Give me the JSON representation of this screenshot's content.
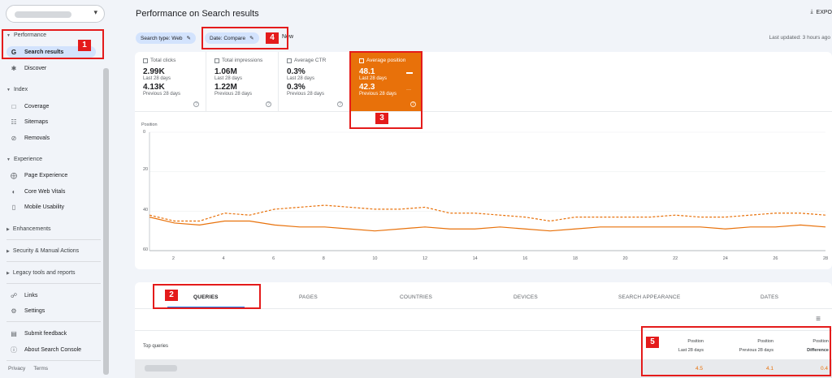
{
  "sidebar": {
    "performance_section": "Performance",
    "search_results": "Search results",
    "discover": "Discover",
    "index_section": "Index",
    "coverage": "Coverage",
    "sitemaps": "Sitemaps",
    "removals": "Removals",
    "experience_section": "Experience",
    "page_experience": "Page Experience",
    "core_web_vitals": "Core Web Vitals",
    "mobile_usability": "Mobile Usability",
    "enhancements": "Enhancements",
    "security": "Security & Manual Actions",
    "legacy": "Legacy tools and reports",
    "links": "Links",
    "settings": "Settings",
    "submit_feedback": "Submit feedback",
    "about": "About Search Console",
    "privacy": "Privacy",
    "terms": "Terms"
  },
  "header": {
    "title": "Performance on Search results",
    "export": "EXPO",
    "chip_search_type": "Search type: Web",
    "chip_date": "Date: Compare",
    "new": "New",
    "last_updated": "Last updated: 3 hours ago"
  },
  "metrics": [
    {
      "title": "Total clicks",
      "value": "2.99K",
      "sub": "Last 28 days",
      "value2": "4.13K",
      "sub2": "Previous 28 days"
    },
    {
      "title": "Total impressions",
      "value": "1.06M",
      "sub": "Last 28 days",
      "value2": "1.22M",
      "sub2": "Previous 28 days"
    },
    {
      "title": "Average CTR",
      "value": "0.3%",
      "sub": "Last 28 days",
      "value2": "0.3%",
      "sub2": "Previous 28 days"
    },
    {
      "title": "Average position",
      "value": "48.1",
      "sub": "Last 28 days",
      "value2": "42.3",
      "sub2": "Previous 28 days"
    }
  ],
  "chart_data": {
    "type": "line",
    "ylabel": "Position",
    "ylim": [
      0,
      60
    ],
    "y_reversed": true,
    "yticks": [
      0,
      20,
      40,
      60
    ],
    "x": [
      1,
      2,
      3,
      4,
      5,
      6,
      7,
      8,
      9,
      10,
      11,
      12,
      13,
      14,
      15,
      16,
      17,
      18,
      19,
      20,
      21,
      22,
      23,
      24,
      25,
      26,
      27,
      28
    ],
    "xticks": [
      "2",
      "4",
      "6",
      "8",
      "10",
      "12",
      "14",
      "16",
      "18",
      "20",
      "22",
      "24",
      "26",
      "28"
    ],
    "series": [
      {
        "style": "solid",
        "color": "#e8710a",
        "values": [
          43,
          46,
          47,
          45,
          45,
          47,
          48,
          48,
          49,
          50,
          49,
          48,
          49,
          49,
          48,
          49,
          50,
          49,
          48,
          48,
          48,
          48,
          48,
          49,
          48,
          48,
          47,
          48
        ]
      },
      {
        "style": "dashed",
        "color": "#e8710a",
        "values": [
          42,
          45,
          45,
          41,
          42,
          39,
          38,
          37,
          38,
          39,
          39,
          38,
          41,
          41,
          42,
          43,
          45,
          43,
          43,
          43,
          43,
          42,
          43,
          43,
          42,
          41,
          41,
          42
        ]
      }
    ]
  },
  "tabs": [
    "QUERIES",
    "PAGES",
    "COUNTRIES",
    "DEVICES",
    "SEARCH APPEARANCE",
    "DATES"
  ],
  "table": {
    "top_queries": "Top queries",
    "columns": [
      {
        "line1": "Position",
        "line2": "Last 28 days"
      },
      {
        "line1": "Position",
        "line2": "Previous 28 days"
      },
      {
        "line1": "Position",
        "line2": "Difference"
      }
    ],
    "row": [
      "4.5",
      "4.1",
      "0.4"
    ]
  },
  "annotations": [
    "1",
    "2",
    "3",
    "4",
    "5"
  ],
  "colors": {
    "accent": "#e8710a",
    "annotation": "#e41b1b",
    "chip": "#d3e3fd"
  }
}
